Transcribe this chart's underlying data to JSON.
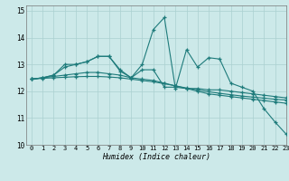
{
  "title": "",
  "xlabel": "Humidex (Indice chaleur)",
  "ylabel": "",
  "bg_color": "#cce9e9",
  "grid_color": "#aad0d0",
  "line_color": "#1e7b7b",
  "xlim": [
    -0.5,
    23
  ],
  "ylim": [
    10,
    15.2
  ],
  "yticks": [
    10,
    11,
    12,
    13,
    14,
    15
  ],
  "xticks": [
    0,
    1,
    2,
    3,
    4,
    5,
    6,
    7,
    8,
    9,
    10,
    11,
    12,
    13,
    14,
    15,
    16,
    17,
    18,
    19,
    20,
    21,
    22,
    23
  ],
  "series": [
    {
      "x": [
        0,
        1,
        2,
        3,
        4,
        5,
        6,
        7,
        8,
        9,
        10,
        11,
        12,
        13,
        14,
        15,
        16,
        17,
        18,
        19,
        20,
        21,
        22,
        23
      ],
      "y": [
        12.45,
        12.5,
        12.6,
        13.0,
        13.0,
        13.1,
        13.3,
        13.3,
        12.8,
        12.5,
        13.0,
        14.3,
        14.75,
        12.1,
        13.55,
        12.9,
        13.25,
        13.2,
        12.3,
        12.15,
        12.0,
        11.35,
        10.85,
        10.4
      ]
    },
    {
      "x": [
        0,
        1,
        2,
        3,
        4,
        5,
        6,
        7,
        8,
        9,
        10,
        11,
        12,
        13,
        14,
        15,
        16,
        17,
        18,
        19,
        20,
        21,
        22,
        23
      ],
      "y": [
        12.45,
        12.5,
        12.6,
        12.9,
        13.0,
        13.1,
        13.3,
        13.3,
        12.75,
        12.5,
        12.8,
        12.8,
        12.15,
        12.15,
        12.1,
        12.1,
        12.05,
        12.05,
        12.0,
        11.95,
        11.9,
        11.85,
        11.8,
        11.75
      ]
    },
    {
      "x": [
        0,
        1,
        2,
        3,
        4,
        5,
        6,
        7,
        8,
        9,
        10,
        11,
        12,
        13,
        14,
        15,
        16,
        17,
        18,
        19,
        20,
        21,
        22,
        23
      ],
      "y": [
        12.45,
        12.5,
        12.55,
        12.6,
        12.65,
        12.7,
        12.7,
        12.65,
        12.6,
        12.5,
        12.45,
        12.4,
        12.3,
        12.2,
        12.1,
        12.0,
        11.9,
        11.85,
        11.8,
        11.75,
        11.7,
        11.65,
        11.6,
        11.55
      ]
    },
    {
      "x": [
        0,
        1,
        2,
        3,
        4,
        5,
        6,
        7,
        8,
        9,
        10,
        11,
        12,
        13,
        14,
        15,
        16,
        17,
        18,
        19,
        20,
        21,
        22,
        23
      ],
      "y": [
        12.45,
        12.48,
        12.5,
        12.52,
        12.54,
        12.55,
        12.55,
        12.53,
        12.5,
        12.45,
        12.4,
        12.35,
        12.28,
        12.2,
        12.12,
        12.05,
        11.98,
        11.92,
        11.87,
        11.82,
        11.78,
        11.74,
        11.7,
        11.67
      ]
    }
  ]
}
